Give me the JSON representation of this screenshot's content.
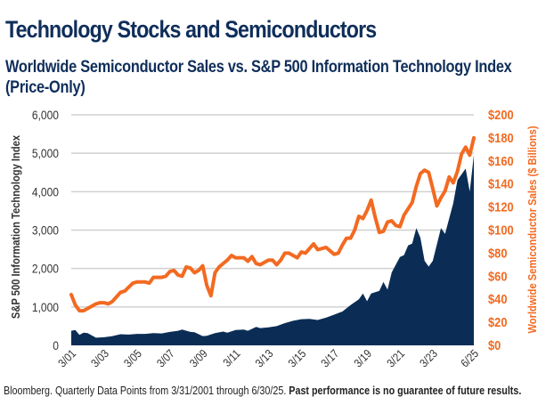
{
  "chart_data": {
    "type": "line",
    "title": "Technology Stocks and Semiconductors",
    "subtitle": "Worldwide Semiconductor Sales vs. S&P 500 Information Technology Index (Price-Only)",
    "ylabel_left": "S&P 500 Information Technology Index",
    "ylabel_right": "Worldwide Semiconductor Sales ($ Billions)",
    "ylim_left": [
      0,
      6000
    ],
    "ylim_right": [
      0,
      200
    ],
    "xlim": [
      2001.0,
      2025.5
    ],
    "grid": true,
    "left_ticks": [
      "0",
      "1,000",
      "2,000",
      "3,000",
      "4,000",
      "5,000",
      "6,000"
    ],
    "right_ticks": [
      "$0",
      "$20",
      "$40",
      "$60",
      "$80",
      "$100",
      "$120",
      "$140",
      "$160",
      "$180",
      "$200"
    ],
    "x_ticks": [
      {
        "label": "3/01",
        "x": 2001.0
      },
      {
        "label": "3/03",
        "x": 2003.0
      },
      {
        "label": "3/05",
        "x": 2005.0
      },
      {
        "label": "3/07",
        "x": 2007.0
      },
      {
        "label": "3/09",
        "x": 2009.0
      },
      {
        "label": "3/11",
        "x": 2011.0
      },
      {
        "label": "3/13",
        "x": 2013.0
      },
      {
        "label": "3/15",
        "x": 2015.0
      },
      {
        "label": "3/17",
        "x": 2017.0
      },
      {
        "label": "3/19",
        "x": 2019.0
      },
      {
        "label": "3/21",
        "x": 2021.0
      },
      {
        "label": "3/23",
        "x": 2023.0
      },
      {
        "label": "6/25",
        "x": 2025.5
      }
    ],
    "series": [
      {
        "name": "S&P 500 Information Technology Index",
        "type": "area",
        "axis": "left",
        "color": "#0b2d55",
        "points": [
          [
            2001.0,
            380
          ],
          [
            2001.25,
            400
          ],
          [
            2001.5,
            270
          ],
          [
            2001.75,
            330
          ],
          [
            2002.0,
            320
          ],
          [
            2002.5,
            200
          ],
          [
            2003.0,
            210
          ],
          [
            2003.5,
            240
          ],
          [
            2004.0,
            290
          ],
          [
            2004.5,
            280
          ],
          [
            2005.0,
            300
          ],
          [
            2005.5,
            300
          ],
          [
            2006.0,
            320
          ],
          [
            2006.5,
            310
          ],
          [
            2007.0,
            350
          ],
          [
            2007.5,
            380
          ],
          [
            2007.75,
            410
          ],
          [
            2008.25,
            350
          ],
          [
            2008.5,
            340
          ],
          [
            2009.0,
            240
          ],
          [
            2009.25,
            250
          ],
          [
            2009.75,
            320
          ],
          [
            2010.25,
            360
          ],
          [
            2010.5,
            330
          ],
          [
            2011.0,
            400
          ],
          [
            2011.5,
            410
          ],
          [
            2011.75,
            380
          ],
          [
            2012.25,
            480
          ],
          [
            2012.5,
            450
          ],
          [
            2013.0,
            470
          ],
          [
            2013.5,
            500
          ],
          [
            2014.0,
            580
          ],
          [
            2014.5,
            640
          ],
          [
            2015.0,
            680
          ],
          [
            2015.5,
            690
          ],
          [
            2016.0,
            660
          ],
          [
            2016.5,
            720
          ],
          [
            2017.0,
            800
          ],
          [
            2017.5,
            880
          ],
          [
            2018.0,
            1050
          ],
          [
            2018.5,
            1200
          ],
          [
            2018.75,
            1350
          ],
          [
            2019.0,
            1150
          ],
          [
            2019.25,
            1350
          ],
          [
            2019.75,
            1420
          ],
          [
            2020.0,
            1650
          ],
          [
            2020.25,
            1450
          ],
          [
            2020.5,
            1900
          ],
          [
            2021.0,
            2300
          ],
          [
            2021.25,
            2350
          ],
          [
            2021.5,
            2600
          ],
          [
            2021.75,
            2650
          ],
          [
            2022.0,
            3050
          ],
          [
            2022.25,
            2800
          ],
          [
            2022.5,
            2200
          ],
          [
            2022.75,
            2050
          ],
          [
            2023.0,
            2200
          ],
          [
            2023.5,
            3050
          ],
          [
            2023.75,
            2900
          ],
          [
            2024.25,
            3700
          ],
          [
            2024.5,
            4300
          ],
          [
            2024.75,
            4450
          ],
          [
            2025.0,
            4600
          ],
          [
            2025.25,
            4000
          ],
          [
            2025.5,
            4950
          ]
        ]
      },
      {
        "name": "Worldwide Semiconductor Sales ($ Billions)",
        "type": "line",
        "axis": "right",
        "color": "#f26a21",
        "points": [
          [
            2001.0,
            44
          ],
          [
            2001.25,
            35
          ],
          [
            2001.5,
            30
          ],
          [
            2001.75,
            30
          ],
          [
            2002.0,
            32
          ],
          [
            2002.5,
            36
          ],
          [
            2002.75,
            37
          ],
          [
            2003.0,
            37
          ],
          [
            2003.25,
            36
          ],
          [
            2003.5,
            38
          ],
          [
            2004.0,
            46
          ],
          [
            2004.25,
            47
          ],
          [
            2004.75,
            54
          ],
          [
            2005.0,
            55
          ],
          [
            2005.5,
            55
          ],
          [
            2005.75,
            54
          ],
          [
            2006.0,
            59
          ],
          [
            2006.5,
            59
          ],
          [
            2006.75,
            60
          ],
          [
            2007.0,
            64
          ],
          [
            2007.25,
            65
          ],
          [
            2007.5,
            61
          ],
          [
            2007.75,
            60
          ],
          [
            2008.0,
            68
          ],
          [
            2008.25,
            67
          ],
          [
            2008.5,
            63
          ],
          [
            2008.75,
            65
          ],
          [
            2009.0,
            69
          ],
          [
            2009.25,
            52
          ],
          [
            2009.5,
            43
          ],
          [
            2009.75,
            63
          ],
          [
            2010.0,
            68
          ],
          [
            2010.5,
            74
          ],
          [
            2010.75,
            78
          ],
          [
            2011.0,
            76
          ],
          [
            2011.5,
            76
          ],
          [
            2011.75,
            73
          ],
          [
            2012.0,
            77
          ],
          [
            2012.25,
            71
          ],
          [
            2012.5,
            70
          ],
          [
            2013.0,
            74
          ],
          [
            2013.25,
            74
          ],
          [
            2013.5,
            70
          ],
          [
            2013.75,
            74
          ],
          [
            2014.0,
            80
          ],
          [
            2014.25,
            80
          ],
          [
            2014.75,
            76
          ],
          [
            2015.0,
            81
          ],
          [
            2015.25,
            80
          ],
          [
            2015.75,
            88
          ],
          [
            2016.0,
            83
          ],
          [
            2016.5,
            85
          ],
          [
            2016.75,
            82
          ],
          [
            2017.0,
            79
          ],
          [
            2017.25,
            80
          ],
          [
            2017.5,
            87
          ],
          [
            2017.75,
            93
          ],
          [
            2018.0,
            93
          ],
          [
            2018.25,
            100
          ],
          [
            2018.5,
            112
          ],
          [
            2018.75,
            110
          ],
          [
            2019.0,
            117
          ],
          [
            2019.25,
            126
          ],
          [
            2019.5,
            111
          ],
          [
            2019.75,
            98
          ],
          [
            2020.0,
            99
          ],
          [
            2020.25,
            107
          ],
          [
            2020.5,
            108
          ],
          [
            2020.75,
            104
          ],
          [
            2021.0,
            103
          ],
          [
            2021.25,
            113
          ],
          [
            2021.75,
            124
          ],
          [
            2022.0,
            138
          ],
          [
            2022.25,
            149
          ],
          [
            2022.5,
            152
          ],
          [
            2022.75,
            150
          ],
          [
            2023.0,
            136
          ],
          [
            2023.25,
            121
          ],
          [
            2023.5,
            128
          ],
          [
            2023.75,
            134
          ],
          [
            2024.0,
            146
          ],
          [
            2024.25,
            141
          ],
          [
            2024.5,
            151
          ],
          [
            2024.75,
            166
          ],
          [
            2025.0,
            172
          ],
          [
            2025.25,
            165
          ],
          [
            2025.5,
            180
          ]
        ]
      }
    ]
  },
  "footer": {
    "source": "Bloomberg. Quarterly Data Points from 3/31/2001 through 6/30/25. ",
    "disclaimer": "Past performance is no guarantee of future results."
  }
}
